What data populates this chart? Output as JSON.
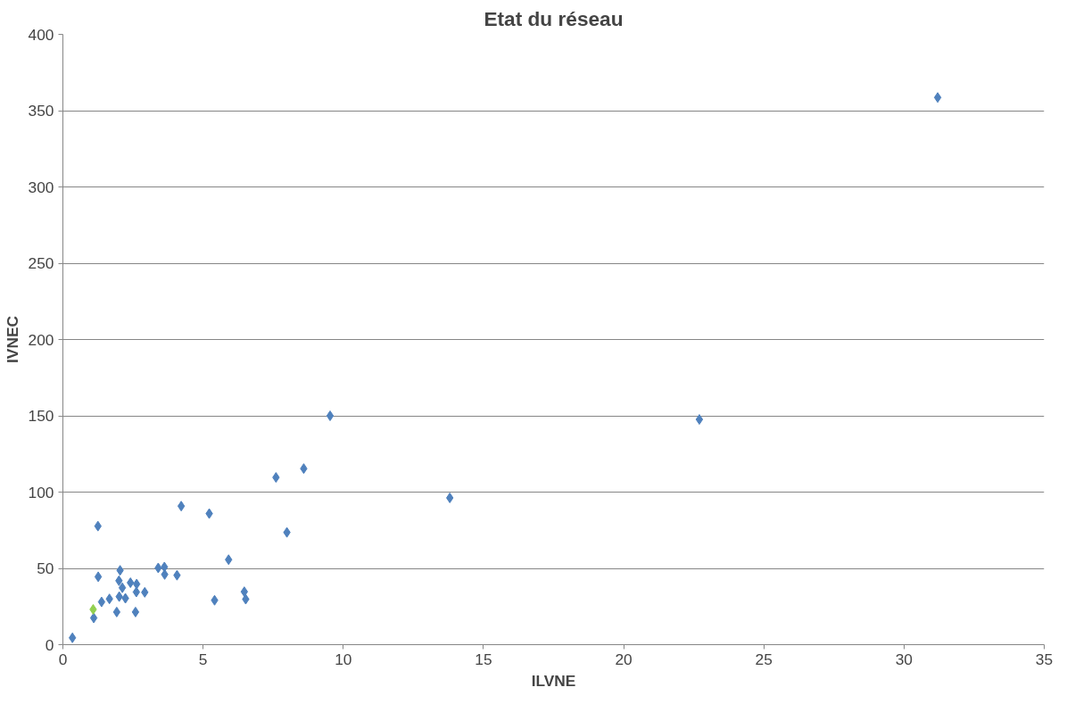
{
  "chart_data": {
    "type": "scatter",
    "title": "Etat du réseau",
    "xlabel": "ILVNE",
    "ylabel": "IVNEC",
    "xlim": [
      0,
      35
    ],
    "xticks": [
      0,
      5,
      10,
      15,
      20,
      25,
      30,
      35
    ],
    "ylim": [
      0,
      400
    ],
    "yticks": [
      0,
      50,
      100,
      150,
      200,
      250,
      300,
      350,
      400
    ],
    "grid": "y",
    "marker": "diamond",
    "x": [
      0.34,
      1.25,
      1.26,
      2.04,
      2.0,
      2.12,
      2.41,
      2.63,
      2.62,
      2.92,
      2.01,
      2.23,
      1.66,
      1.38,
      1.92,
      2.59,
      1.1,
      3.4,
      3.62,
      3.63,
      4.07,
      4.22,
      5.22,
      5.91,
      5.41,
      6.47,
      6.52,
      7.99,
      9.53,
      8.59,
      7.6,
      13.8,
      22.7,
      31.2,
      1.08
    ],
    "values": [
      4.5,
      77.7,
      44.5,
      48.7,
      41.9,
      37.3,
      40.6,
      39.7,
      34.5,
      34.3,
      31.5,
      30.4,
      30.0,
      28.0,
      21.4,
      21.4,
      17.5,
      50.3,
      50.9,
      46.0,
      45.5,
      90.8,
      85.9,
      55.7,
      29.1,
      34.7,
      29.8,
      73.6,
      150,
      115.4,
      109.6,
      96.2,
      147.6,
      358.6,
      23.1
    ],
    "colors": [
      "#4f81bd",
      "#4f81bd",
      "#4f81bd",
      "#4f81bd",
      "#4f81bd",
      "#4f81bd",
      "#4f81bd",
      "#4f81bd",
      "#4f81bd",
      "#4f81bd",
      "#4f81bd",
      "#4f81bd",
      "#4f81bd",
      "#4f81bd",
      "#4f81bd",
      "#4f81bd",
      "#4f81bd",
      "#4f81bd",
      "#4f81bd",
      "#4f81bd",
      "#4f81bd",
      "#4f81bd",
      "#4f81bd",
      "#4f81bd",
      "#4f81bd",
      "#4f81bd",
      "#4f81bd",
      "#4f81bd",
      "#4f81bd",
      "#4f81bd",
      "#4f81bd",
      "#4f81bd",
      "#4f81bd",
      "#4f81bd",
      "#92d050"
    ]
  }
}
